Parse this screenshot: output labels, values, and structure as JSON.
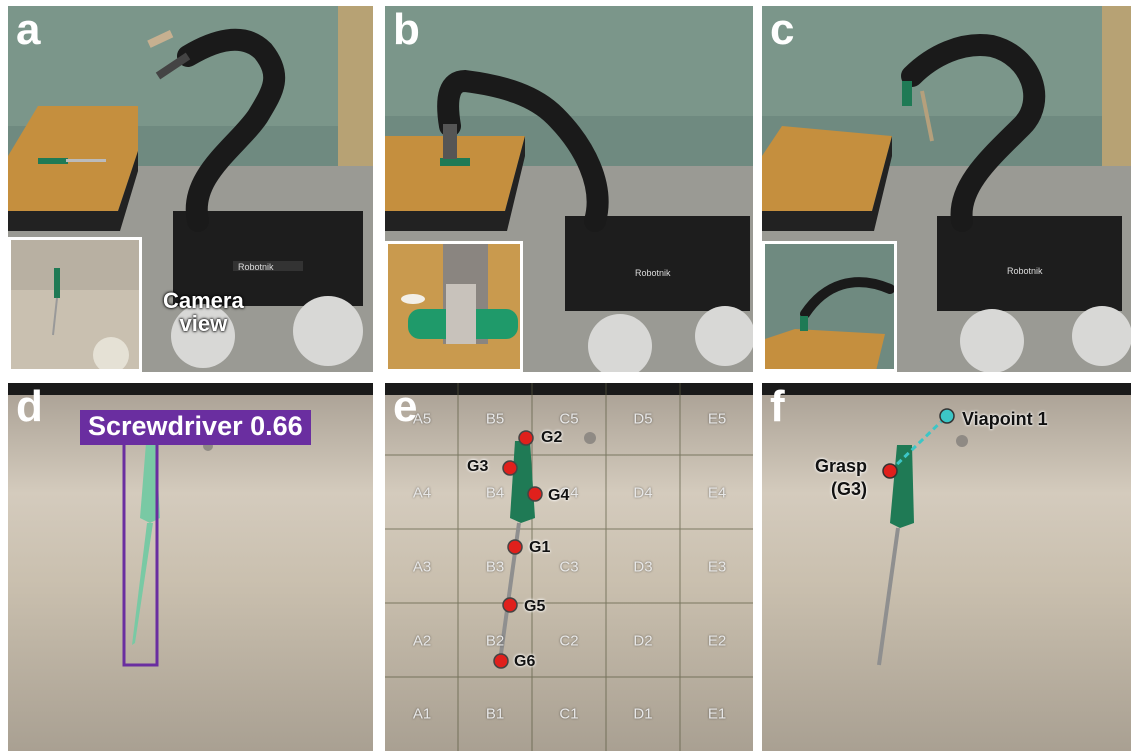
{
  "panels": {
    "a": {
      "letter": "a",
      "camera_label_line1": "Camera",
      "camera_label_line2": "view"
    },
    "b": {
      "letter": "b"
    },
    "c": {
      "letter": "c"
    },
    "d": {
      "letter": "d",
      "detection_label": "Screwdriver 0.66"
    },
    "e": {
      "letter": "e",
      "grid_labels": [
        "A5",
        "B5",
        "C5",
        "D5",
        "E5",
        "A4",
        "B4",
        "C4",
        "D4",
        "E4",
        "A3",
        "B3",
        "C3",
        "D3",
        "E3",
        "A2",
        "B2",
        "C2",
        "D2",
        "E2",
        "A1",
        "B1",
        "C1",
        "D1",
        "E1"
      ],
      "grasp_points": [
        "G1",
        "G2",
        "G3",
        "G4",
        "G5",
        "G6"
      ]
    },
    "f": {
      "letter": "f",
      "viapoint_label": "Viapoint 1",
      "grasp_label_line1": "Grasp",
      "grasp_label_line2": "(G3)"
    }
  },
  "branding": {
    "robot_brand": "Robotnik"
  },
  "colors": {
    "marker_red": "#e0201c",
    "detection_purple": "#6a2ea0",
    "viapoint_cyan": "#3cc6c6",
    "screwdriver_green": "#1f7a55"
  }
}
